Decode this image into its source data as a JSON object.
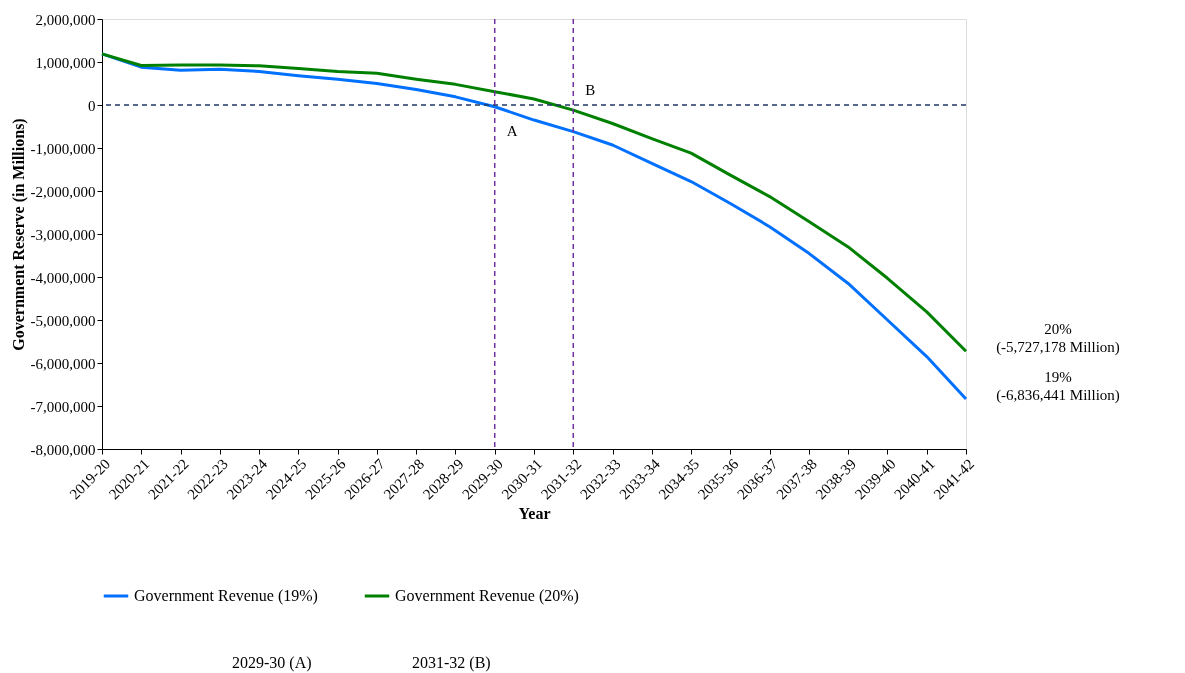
{
  "chart_data": {
    "type": "line",
    "xlabel": "Year",
    "ylabel": "Government Reserve (in Millions)",
    "categories": [
      "2019-20",
      "2020-21",
      "2021-22",
      "2022-23",
      "2023-24",
      "2024-25",
      "2025-26",
      "2026-27",
      "2027-28",
      "2028-29",
      "2029-30",
      "2030-31",
      "2031-32",
      "2032-33",
      "2033-34",
      "2034-35",
      "2035-36",
      "2036-37",
      "2037-38",
      "2038-39",
      "2039-40",
      "2040-41",
      "2041-42"
    ],
    "series": [
      {
        "name": "Government Revenue (19%)",
        "color": "#0070ff",
        "values": [
          1190000,
          880000,
          810000,
          830000,
          780000,
          680000,
          600000,
          500000,
          360000,
          190000,
          -40000,
          -350000,
          -620000,
          -930000,
          -1360000,
          -1780000,
          -2290000,
          -2830000,
          -3450000,
          -4150000,
          -5000000,
          -5850000,
          -6836441
        ]
      },
      {
        "name": "Government Revenue (20%)",
        "color": "#008000",
        "values": [
          1190000,
          920000,
          930000,
          930000,
          910000,
          850000,
          780000,
          740000,
          600000,
          480000,
          310000,
          140000,
          -120000,
          -430000,
          -780000,
          -1120000,
          -1630000,
          -2130000,
          -2710000,
          -3300000,
          -4030000,
          -4810000,
          -5727178
        ]
      }
    ],
    "ylim": [
      -8000000,
      2000000
    ],
    "yticks": [
      {
        "value": -8000000,
        "label": "-8,000,000"
      },
      {
        "value": -7000000,
        "label": "-7,000,000"
      },
      {
        "value": -6000000,
        "label": "-6,000,000"
      },
      {
        "value": -5000000,
        "label": "-5,000,000"
      },
      {
        "value": -4000000,
        "label": "-4,000,000"
      },
      {
        "value": -3000000,
        "label": "-3,000,000"
      },
      {
        "value": -2000000,
        "label": "-2,000,000"
      },
      {
        "value": -1000000,
        "label": "-1,000,000"
      },
      0,
      {
        "value": 1000000,
        "label": "1,000,000"
      },
      {
        "value": 2000000,
        "label": "2,000,000"
      }
    ],
    "ref_lines": [
      {
        "axis": "y",
        "value": 0,
        "color": "#1f3864",
        "line_style": "dashed"
      },
      {
        "axis": "x",
        "value": "2029-30",
        "color": "#7030a0",
        "line_style": "dashed"
      },
      {
        "axis": "x",
        "value": "2031-32",
        "color": "#7030a0",
        "line_style": "dashed"
      }
    ],
    "annotations": [
      {
        "text": "A",
        "x": "2029-30",
        "y": -600000
      },
      {
        "text": "B",
        "x": "2031-32",
        "y": 350000
      },
      {
        "text": "20%\n(-5,727,178 Million)",
        "x": "2041-42",
        "y": -5727178
      },
      {
        "text": "19%\n(-6,836,441 Million)",
        "x": "2041-42",
        "y": -6836441
      },
      "2029-30 (A)",
      "2031-32 (B)"
    ],
    "grid": false,
    "legend": "bottom",
    "marker": "none",
    "line_style": "solid"
  }
}
